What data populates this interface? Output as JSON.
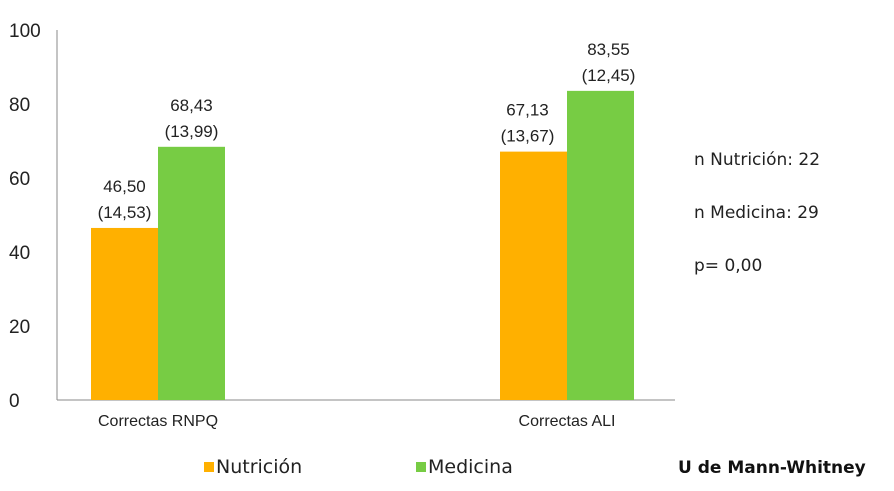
{
  "chart_data": {
    "type": "bar",
    "categories": [
      "Correctas RNPQ",
      "Correctas ALI"
    ],
    "series": [
      {
        "name": "Nutrición",
        "color": "#FFB000",
        "values": [
          46.5,
          67.13
        ],
        "labels": [
          [
            "46,50",
            "(14,53)"
          ],
          [
            "67,13",
            "(13,67)"
          ]
        ]
      },
      {
        "name": "Medicina",
        "color": "#77CC44",
        "values": [
          68.43,
          83.55
        ],
        "labels": [
          [
            "68,43",
            "(13,99)"
          ],
          [
            "83,55",
            "(12,45)"
          ]
        ]
      }
    ],
    "ylim": [
      0,
      100
    ],
    "yticks": [
      "0",
      "20",
      "40",
      "60",
      "80",
      "100"
    ],
    "grid": false,
    "legend_position": "bottom"
  },
  "notes": {
    "n_nutricion": "n Nutrición: 22",
    "n_medicina": "n Medicina: 29",
    "p_value": "p= 0,00",
    "test": "U de Mann-Whitney"
  }
}
